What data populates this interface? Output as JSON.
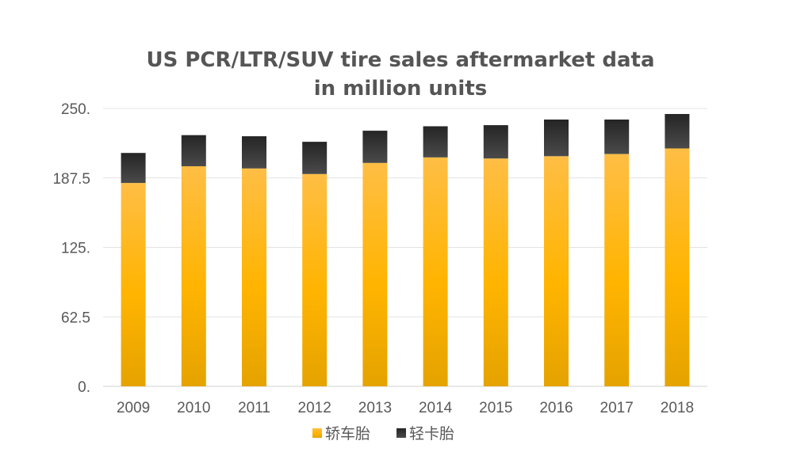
{
  "chart_data": {
    "type": "bar",
    "stacked": true,
    "title": [
      "US PCR/LTR/SUV tire sales aftermarket data",
      "in million units"
    ],
    "xlabel": "",
    "ylabel": "",
    "categories": [
      "2009",
      "2010",
      "2011",
      "2012",
      "2013",
      "2014",
      "2015",
      "2016",
      "2017",
      "2018"
    ],
    "y_ticks": [
      "0.",
      "62.5",
      "125.",
      "187.5",
      "250."
    ],
    "ylim": [
      0,
      250
    ],
    "grid": true,
    "legend_position": "bottom",
    "series": [
      {
        "name": "轿车胎",
        "color": "#FFB81C",
        "values": [
          183,
          198,
          196,
          191,
          201,
          206,
          205,
          207,
          209,
          214
        ]
      },
      {
        "name": "轻卡胎",
        "color": "#2E2E2E",
        "values": [
          27,
          28,
          29,
          29,
          29,
          28,
          30,
          33,
          31,
          31
        ]
      }
    ]
  }
}
